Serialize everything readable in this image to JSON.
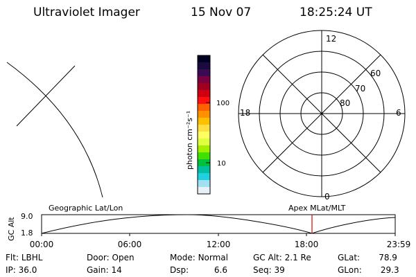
{
  "header": {
    "instrument": "Ultraviolet Imager",
    "date": "15 Nov 07",
    "time": "18:25:24 UT"
  },
  "colorbar": {
    "unit_label": "photon cm⁻²s⁻¹",
    "ticks": [
      "100",
      "10"
    ],
    "colors": [
      "#000020",
      "#1a0a40",
      "#3a0a55",
      "#7a0040",
      "#a00020",
      "#d00010",
      "#ff1010",
      "#ff6000",
      "#ff9000",
      "#ffc000",
      "#ffe040",
      "#ffff60",
      "#e0ff40",
      "#a0f000",
      "#40e000",
      "#00c040",
      "#00c0a0",
      "#20d0e0",
      "#a0e0f0",
      "#e8f0f8"
    ]
  },
  "polar": {
    "mlt_labels": [
      "12",
      "18",
      "6",
      "0"
    ],
    "lat_labels": [
      "60",
      "70",
      "80"
    ]
  },
  "strip": {
    "left_title": "Geographic Lat/Lon",
    "right_title": "Apex MLat/MLT",
    "y_axis_label": "GC Alt",
    "y_ticks": [
      "9.0",
      "1.8"
    ],
    "x_ticks": [
      "00:00",
      "06:00",
      "12:00",
      "18:00",
      "23:59"
    ],
    "marker_color": "#dd0000"
  },
  "info": {
    "filter_label": "Flt:",
    "filter": "LBHL",
    "door_label": "Door:",
    "door": "Open",
    "mode_label": "Mode:",
    "mode": "Normal",
    "gc_alt_label": "GC Alt:",
    "gc_alt": "2.1 Re",
    "glat_label": "GLat:",
    "glat": "78.9",
    "ip_label": "IP:",
    "ip": "36.0",
    "gain_label": "Gain:",
    "gain": "14",
    "dsp_label": "Dsp:",
    "dsp": "6.6",
    "seq_label": "Seq:",
    "seq": "39",
    "glon_label": "GLon:",
    "glon": "29.3"
  }
}
